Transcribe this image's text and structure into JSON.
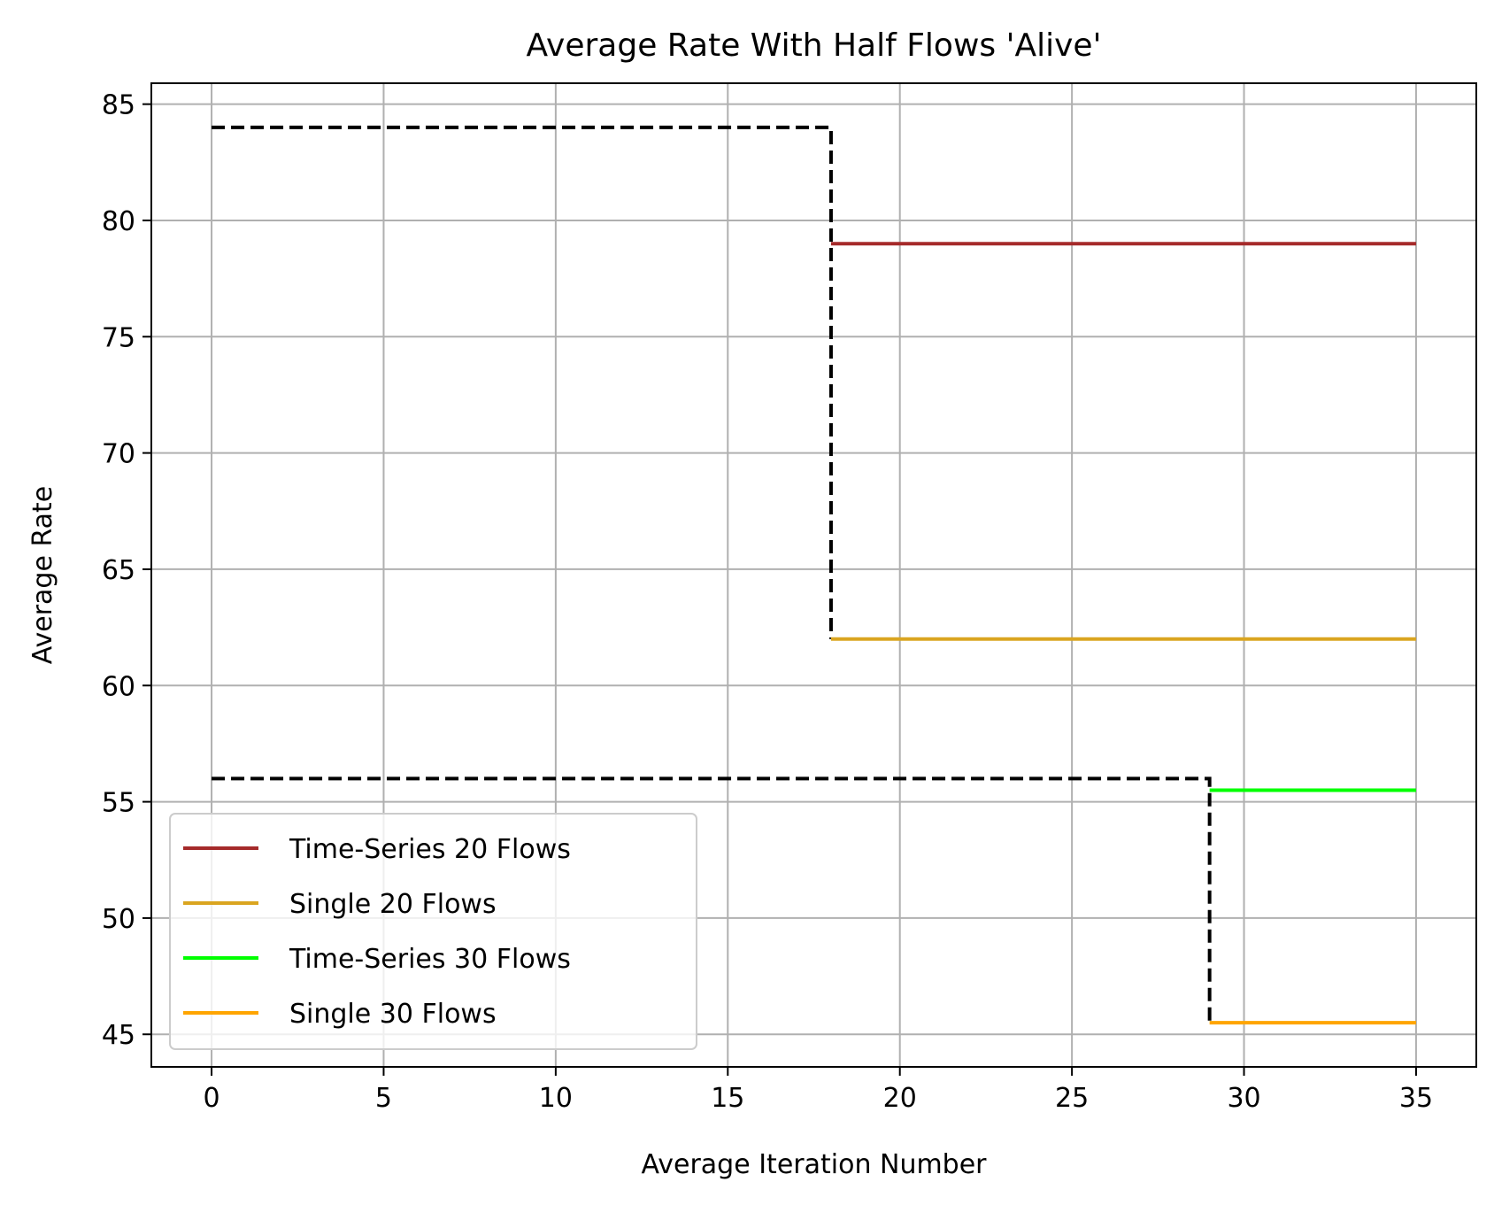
{
  "chart_data": {
    "type": "line",
    "title": "Average Rate With Half Flows 'Alive'",
    "xlabel": "Average Iteration Number",
    "ylabel": "Average Rate",
    "xlim": [
      -1.75,
      36.75
    ],
    "ylim": [
      43.6,
      85.9
    ],
    "xticks": [
      0,
      5,
      10,
      15,
      20,
      25,
      30,
      35
    ],
    "yticks": [
      45,
      50,
      55,
      60,
      65,
      70,
      75,
      80,
      85
    ],
    "grid": true,
    "legend_position": "lower-left",
    "series": [
      {
        "name": "Time-Series 20 Flows",
        "color": "#a52a2a",
        "points": [
          [
            18,
            79
          ],
          [
            35,
            79
          ]
        ]
      },
      {
        "name": "Single 20 Flows",
        "color": "#daa520",
        "points": [
          [
            18,
            62
          ],
          [
            35,
            62
          ]
        ]
      },
      {
        "name": "Time-Series 30 Flows",
        "color": "#00ff00",
        "points": [
          [
            29,
            55.5
          ],
          [
            35,
            55.5
          ]
        ]
      },
      {
        "name": "Single 30 Flows",
        "color": "#ffa500",
        "points": [
          [
            29,
            45.5
          ],
          [
            35,
            45.5
          ]
        ]
      }
    ],
    "reference_lines": [
      {
        "color": "#000000",
        "style": "dashed",
        "points": [
          [
            0,
            84
          ],
          [
            18,
            84
          ],
          [
            18,
            62
          ]
        ]
      },
      {
        "color": "#000000",
        "style": "dashed",
        "points": [
          [
            0,
            56
          ],
          [
            29,
            56
          ],
          [
            29,
            45.5
          ]
        ]
      }
    ]
  }
}
